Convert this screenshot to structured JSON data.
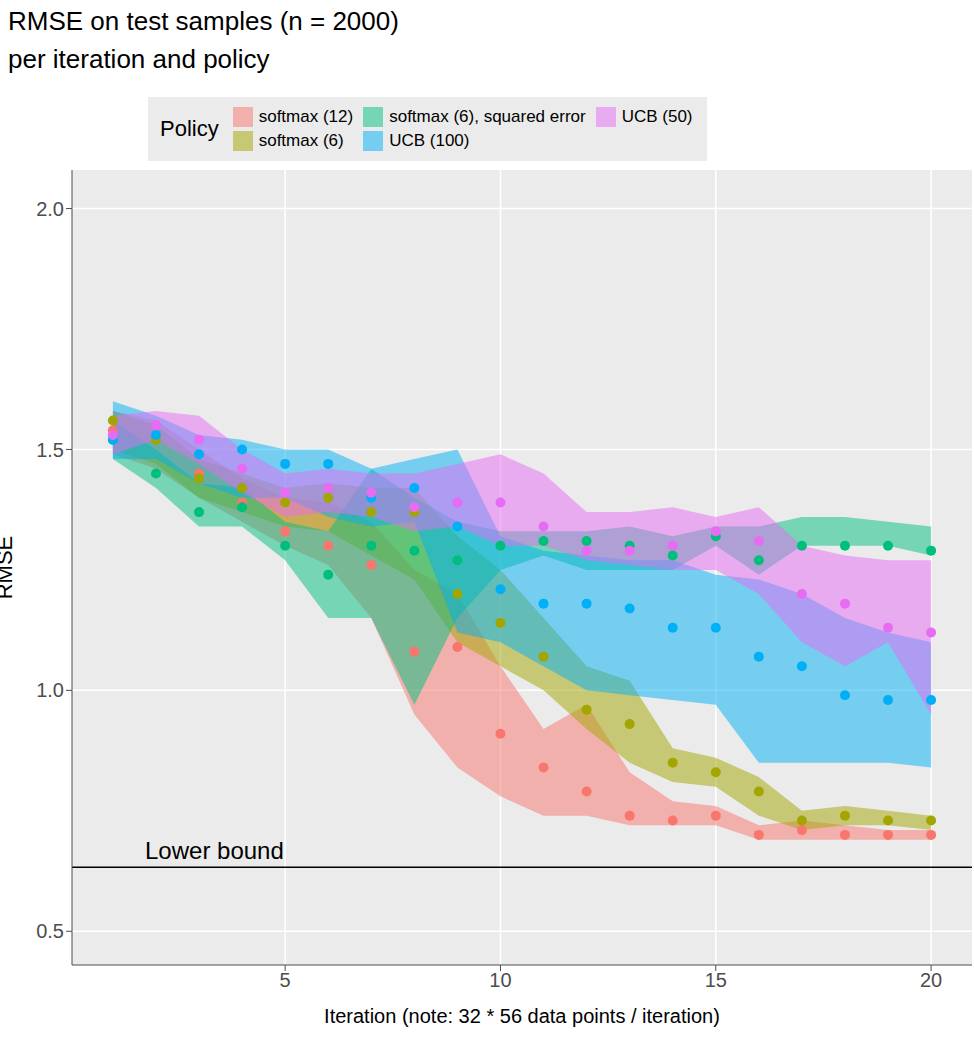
{
  "chart_data": {
    "type": "scatter",
    "title": "RMSE on test samples (n = 2000)",
    "subtitle": "per iteration and policy",
    "x_label": "Iteration (note: 32 * 56 data points / iteration)",
    "y_label": "RMSE",
    "legend_title": "Policy",
    "legend": "top",
    "grid": true,
    "x": [
      1,
      2,
      3,
      4,
      5,
      6,
      7,
      8,
      9,
      10,
      11,
      12,
      13,
      14,
      15,
      16,
      17,
      18,
      19,
      20
    ],
    "xlim": [
      0.05,
      20.95
    ],
    "xticks": [
      5,
      10,
      15,
      20
    ],
    "ylim": [
      0.43,
      2.08
    ],
    "yticks": [
      {
        "value": 0.5,
        "label": "0.5"
      },
      {
        "value": 1,
        "label": "1.0"
      },
      {
        "value": 1.5,
        "label": "1.5"
      },
      {
        "value": 2,
        "label": "2.0"
      }
    ],
    "lower_bound": {
      "label": "Lower bound",
      "value": 0.633
    },
    "series": [
      {
        "name": "softmax (12)",
        "color": "#F8766D",
        "marker": "circle",
        "values": [
          1.54,
          1.53,
          1.45,
          1.39,
          1.33,
          1.3,
          1.26,
          1.08,
          1.09,
          0.91,
          0.84,
          0.79,
          0.74,
          0.73,
          0.74,
          0.7,
          0.71,
          0.7,
          0.7,
          0.7
        ],
        "lower": [
          1.49,
          1.46,
          1.4,
          1.35,
          1.3,
          1.26,
          1.15,
          0.95,
          0.84,
          0.78,
          0.74,
          0.74,
          0.72,
          0.72,
          0.72,
          0.69,
          0.69,
          0.69,
          0.69,
          0.69
        ],
        "upper": [
          1.58,
          1.56,
          1.5,
          1.44,
          1.4,
          1.39,
          1.35,
          1.25,
          1.2,
          1.05,
          0.92,
          0.97,
          0.83,
          0.77,
          0.76,
          0.72,
          0.73,
          0.72,
          0.71,
          0.71
        ]
      },
      {
        "name": "softmax (6)",
        "color": "#A3A500",
        "marker": "circle",
        "values": [
          1.56,
          1.52,
          1.44,
          1.42,
          1.39,
          1.4,
          1.37,
          1.37,
          1.2,
          1.14,
          1.07,
          0.96,
          0.93,
          0.85,
          0.83,
          0.79,
          0.73,
          0.74,
          0.73,
          0.73
        ],
        "lower": [
          1.5,
          1.47,
          1.4,
          1.37,
          1.34,
          1.33,
          1.28,
          1.23,
          1.1,
          1.05,
          1.0,
          0.92,
          0.85,
          0.81,
          0.8,
          0.74,
          0.71,
          0.72,
          0.72,
          0.71
        ],
        "upper": [
          1.58,
          1.55,
          1.48,
          1.45,
          1.42,
          1.43,
          1.42,
          1.42,
          1.32,
          1.25,
          1.15,
          1.05,
          1.02,
          0.88,
          0.86,
          0.82,
          0.75,
          0.76,
          0.75,
          0.74
        ]
      },
      {
        "name": "softmax (6), squared error",
        "color": "#00BF7D",
        "marker": "circle",
        "values": [
          1.52,
          1.45,
          1.37,
          1.38,
          1.3,
          1.24,
          1.3,
          1.29,
          1.27,
          1.3,
          1.31,
          1.31,
          1.3,
          1.28,
          1.32,
          1.27,
          1.3,
          1.3,
          1.3,
          1.29
        ],
        "lower": [
          1.48,
          1.42,
          1.34,
          1.34,
          1.27,
          1.15,
          1.15,
          0.97,
          1.15,
          1.25,
          1.28,
          1.25,
          1.25,
          1.25,
          1.3,
          1.24,
          1.3,
          1.3,
          1.3,
          1.28
        ],
        "upper": [
          1.56,
          1.5,
          1.43,
          1.42,
          1.35,
          1.33,
          1.46,
          1.4,
          1.35,
          1.33,
          1.33,
          1.33,
          1.34,
          1.32,
          1.34,
          1.34,
          1.36,
          1.36,
          1.35,
          1.34
        ]
      },
      {
        "name": "UCB (100)",
        "color": "#00B0F6",
        "marker": "circle",
        "values": [
          1.52,
          1.53,
          1.49,
          1.5,
          1.47,
          1.47,
          1.4,
          1.42,
          1.34,
          1.21,
          1.18,
          1.18,
          1.17,
          1.13,
          1.13,
          1.07,
          1.05,
          0.99,
          0.98,
          0.98
        ],
        "lower": [
          1.48,
          1.48,
          1.43,
          1.4,
          1.4,
          1.36,
          1.34,
          1.35,
          1.12,
          1.1,
          1.05,
          1.0,
          0.99,
          0.98,
          0.97,
          0.85,
          0.85,
          0.85,
          0.85,
          0.84
        ],
        "upper": [
          1.6,
          1.57,
          1.53,
          1.52,
          1.5,
          1.5,
          1.46,
          1.48,
          1.5,
          1.32,
          1.29,
          1.28,
          1.27,
          1.27,
          1.24,
          1.23,
          1.2,
          1.15,
          1.12,
          1.1
        ]
      },
      {
        "name": "UCB (50)",
        "color": "#E76BF3",
        "marker": "circle",
        "values": [
          1.53,
          1.55,
          1.52,
          1.46,
          1.41,
          1.42,
          1.41,
          1.38,
          1.39,
          1.39,
          1.34,
          1.29,
          1.29,
          1.3,
          1.33,
          1.31,
          1.2,
          1.18,
          1.13,
          1.12
        ],
        "lower": [
          1.49,
          1.52,
          1.47,
          1.41,
          1.36,
          1.37,
          1.36,
          1.33,
          1.34,
          1.3,
          1.3,
          1.27,
          1.26,
          1.25,
          1.25,
          1.2,
          1.1,
          1.05,
          1.1,
          0.95
        ],
        "upper": [
          1.57,
          1.58,
          1.57,
          1.5,
          1.45,
          1.46,
          1.45,
          1.45,
          1.47,
          1.49,
          1.45,
          1.37,
          1.37,
          1.38,
          1.36,
          1.38,
          1.3,
          1.28,
          1.27,
          1.27
        ]
      }
    ]
  }
}
